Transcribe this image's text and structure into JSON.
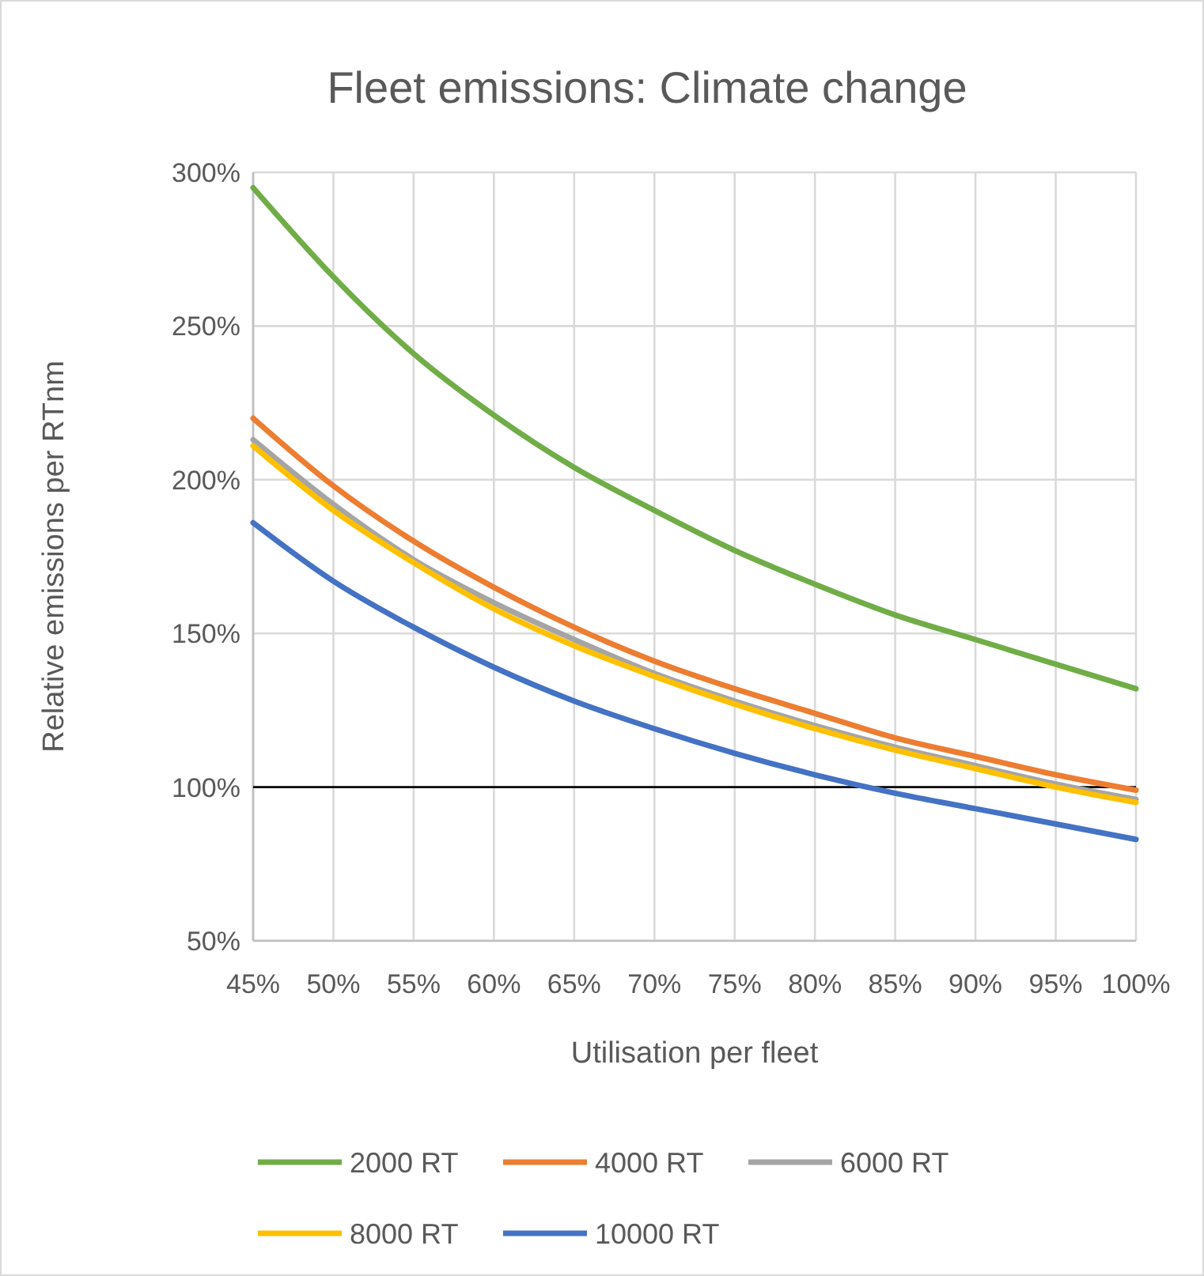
{
  "chart_data": {
    "type": "line",
    "title": "Fleet emissions: Climate change",
    "xlabel": "Utilisation per fleet",
    "ylabel": "Relative emissions per RTnm",
    "x": [
      45,
      50,
      55,
      60,
      65,
      70,
      75,
      80,
      85,
      90,
      95,
      100
    ],
    "series": [
      {
        "name": "2000 RT",
        "color": "#70ad47",
        "values": [
          295,
          266,
          241,
          221,
          204,
          190,
          177,
          166,
          156,
          148,
          140,
          132
        ]
      },
      {
        "name": "4000 RT",
        "color": "#ed7d31",
        "values": [
          220,
          198,
          180,
          165,
          152,
          141,
          132,
          124,
          116,
          110,
          104,
          99
        ]
      },
      {
        "name": "6000 RT",
        "color": "#a5a5a5",
        "values": [
          213,
          192,
          174,
          160,
          148,
          137,
          128,
          120,
          113,
          107,
          101,
          96
        ]
      },
      {
        "name": "8000 RT",
        "color": "#ffc000",
        "values": [
          211,
          190,
          173,
          158,
          146,
          136,
          127,
          119,
          112,
          106,
          100,
          95
        ]
      },
      {
        "name": "10000 RT",
        "color": "#4472c4",
        "values": [
          186,
          167,
          152,
          139,
          128,
          119,
          111,
          104,
          98,
          93,
          88,
          83
        ]
      }
    ],
    "xlim": [
      45,
      100
    ],
    "xticks": [
      {
        "value": 45,
        "label": "45%"
      },
      {
        "value": 50,
        "label": "50%"
      },
      {
        "value": 55,
        "label": "55%"
      },
      {
        "value": 60,
        "label": "60%"
      },
      {
        "value": 65,
        "label": "65%"
      },
      {
        "value": 70,
        "label": "70%"
      },
      {
        "value": 75,
        "label": "75%"
      },
      {
        "value": 80,
        "label": "80%"
      },
      {
        "value": 85,
        "label": "85%"
      },
      {
        "value": 90,
        "label": "90%"
      },
      {
        "value": 95,
        "label": "95%"
      },
      {
        "value": 100,
        "label": "100%"
      }
    ],
    "ylim": [
      50,
      300
    ],
    "yticks": [
      {
        "value": 50,
        "label": "50%"
      },
      {
        "value": 100,
        "label": "100%"
      },
      {
        "value": 150,
        "label": "150%"
      },
      {
        "value": 200,
        "label": "200%"
      },
      {
        "value": 250,
        "label": "250%"
      },
      {
        "value": 300,
        "label": "300%"
      }
    ],
    "ref_lines": [
      {
        "axis": "y",
        "value": 100,
        "color": "#000000"
      }
    ],
    "grid": true,
    "legend": "bottom",
    "marker": "none",
    "line_style": "solid"
  }
}
